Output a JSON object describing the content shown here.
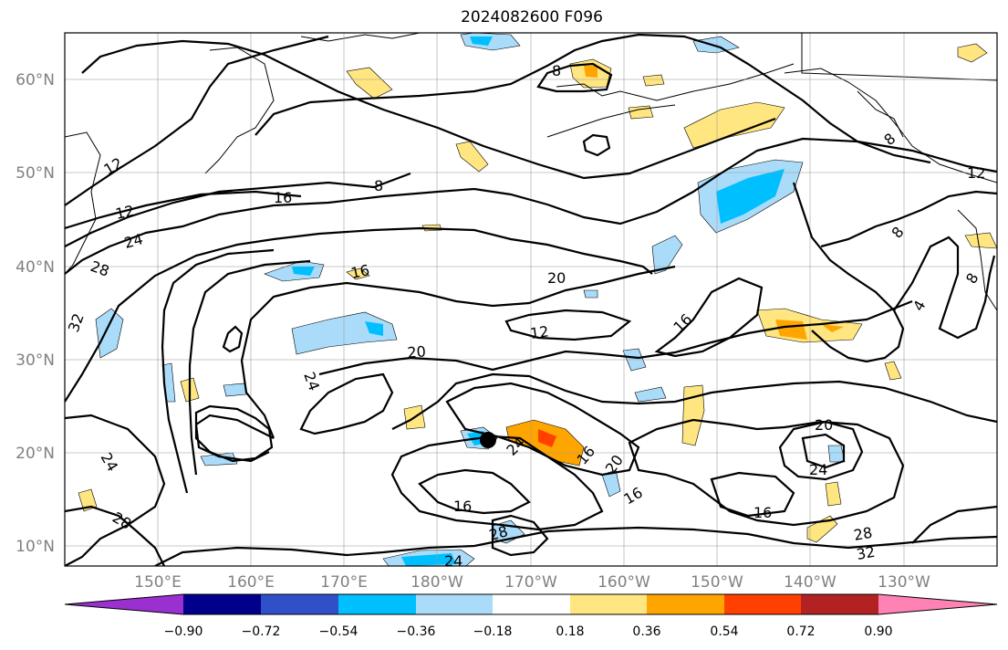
{
  "title": "2024082600 F096",
  "lat_labels": [
    "60°N",
    "50°N",
    "40°N",
    "30°N",
    "20°N",
    "10°N"
  ],
  "lon_labels": [
    "150°E",
    "160°E",
    "170°E",
    "180°W",
    "170°W",
    "160°W",
    "150°W",
    "140°W",
    "130°W"
  ],
  "colorbar": {
    "ticks": [
      "−0.90",
      "−0.72",
      "−0.54",
      "−0.36",
      "−0.18",
      "0.18",
      "0.36",
      "0.54",
      "0.72",
      "0.90"
    ],
    "colors": [
      "#9b30d0",
      "#00008b",
      "#3050c8",
      "#00bfff",
      "#aadcfa",
      "#ffffff",
      "#ffe680",
      "#ffa500",
      "#ff4000",
      "#b22222",
      "#ff82b4"
    ]
  },
  "contour_labels": [
    "8",
    "12",
    "16",
    "24",
    "28",
    "32",
    "16",
    "8",
    "16",
    "20",
    "12",
    "20",
    "24",
    "24",
    "16",
    "20",
    "16",
    "16",
    "24",
    "28",
    "24",
    "28",
    "20",
    "24",
    "28",
    "32",
    "12",
    "8",
    "4",
    "8",
    "8",
    "12"
  ],
  "storm_marker": "filled black circle"
}
